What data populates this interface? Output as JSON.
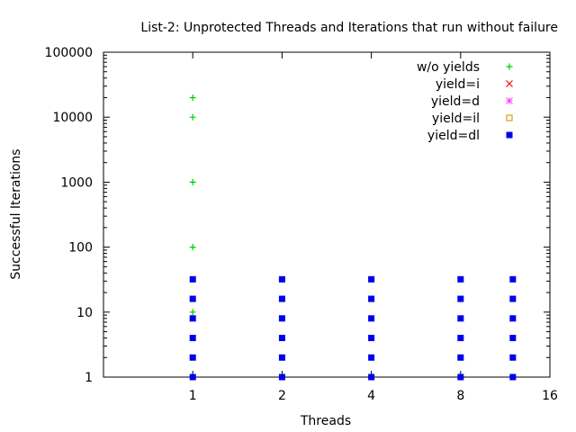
{
  "chart_data": {
    "type": "scatter",
    "title": "List-2: Unprotected Threads and Iterations that run without failure",
    "xlabel": "Threads",
    "ylabel": "Successful Iterations",
    "x_scale": "log2",
    "y_scale": "log10",
    "xlim": [
      0.5,
      16
    ],
    "ylim": [
      1,
      100000
    ],
    "x_ticks": [
      1,
      2,
      4,
      8,
      16
    ],
    "x_tick_labels": [
      "1",
      "2",
      "4",
      "8",
      "16"
    ],
    "y_ticks": [
      1,
      10,
      100,
      1000,
      10000,
      100000
    ],
    "y_tick_labels": [
      "1",
      "10",
      "100",
      "1000",
      "10000",
      "100000"
    ],
    "grid": false,
    "legend_position": "top-right",
    "series": [
      {
        "name": "w/o yields",
        "color": "#00cc00",
        "marker": "plus",
        "points": [
          [
            1,
            10
          ],
          [
            1,
            100
          ],
          [
            1,
            1000
          ],
          [
            1,
            10000
          ],
          [
            1,
            20000
          ]
        ]
      },
      {
        "name": "yield=i",
        "color": "#ff0000",
        "marker": "cross",
        "points": []
      },
      {
        "name": "yield=d",
        "color": "#ff44ff",
        "marker": "star",
        "points": []
      },
      {
        "name": "yield=il",
        "color": "#cc9900",
        "marker": "open-square",
        "points": []
      },
      {
        "name": "yield=dl",
        "color": "#0000ee",
        "marker": "filled-square",
        "points": [
          [
            1,
            1
          ],
          [
            1,
            2
          ],
          [
            1,
            4
          ],
          [
            1,
            8
          ],
          [
            1,
            16
          ],
          [
            1,
            32
          ],
          [
            2,
            1
          ],
          [
            2,
            2
          ],
          [
            2,
            4
          ],
          [
            2,
            8
          ],
          [
            2,
            16
          ],
          [
            2,
            32
          ],
          [
            4,
            1
          ],
          [
            4,
            2
          ],
          [
            4,
            4
          ],
          [
            4,
            8
          ],
          [
            4,
            16
          ],
          [
            4,
            32
          ],
          [
            8,
            1
          ],
          [
            8,
            2
          ],
          [
            8,
            4
          ],
          [
            8,
            8
          ],
          [
            8,
            16
          ],
          [
            8,
            32
          ],
          [
            12,
            1
          ],
          [
            12,
            2
          ],
          [
            12,
            4
          ],
          [
            12,
            8
          ],
          [
            12,
            16
          ],
          [
            12,
            32
          ]
        ]
      }
    ]
  }
}
